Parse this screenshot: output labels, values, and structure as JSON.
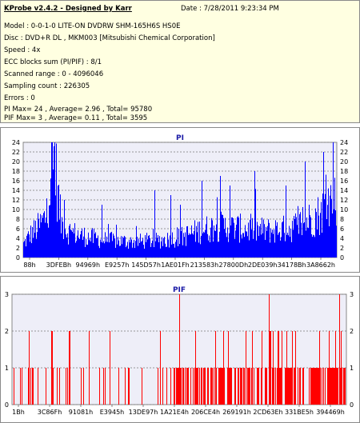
{
  "info": {
    "title": "KProbe v2.4.2 - Designed by Karr",
    "date": "Date : 7/28/2011 9:23:34 PM",
    "lines": [
      "Model : 0-0-1-0 LITE-ON DVDRW SHM-165H6S HS0E",
      "Disc : DVD+R DL , MKM003 [Mitsubishi Chemical Corporation]",
      "Speed : 4x",
      "ECC blocks sum (PI/PIF) : 8/1",
      "Scanned range : 0 - 4096046",
      "Sampling count : 226305",
      "Errors : 0",
      "PI Max= 24 , Average= 2.96 , Total= 95780",
      "PIF Max= 3 , Average= 0.11 , Total= 3595"
    ]
  },
  "chart_data": [
    {
      "type": "bar",
      "title": "PI",
      "color": "#0000ff",
      "ylim": [
        0,
        24
      ],
      "yticks": [
        0,
        2,
        4,
        6,
        8,
        10,
        12,
        14,
        16,
        18,
        20,
        22,
        24
      ],
      "xticks": [
        "88h",
        "3DFEBh",
        "94969h",
        "E9257h",
        "145D57h",
        "1AE01Fh",
        "213583h",
        "27800Dh",
        "2DE039h",
        "34178Bh",
        "3A8662h"
      ],
      "grid": true,
      "profile": [
        [
          0.0,
          3
        ],
        [
          0.02,
          5
        ],
        [
          0.05,
          7
        ],
        [
          0.07,
          9
        ],
        [
          0.08,
          14
        ],
        [
          0.09,
          20
        ],
        [
          0.1,
          22
        ],
        [
          0.11,
          14
        ],
        [
          0.12,
          8
        ],
        [
          0.14,
          6
        ],
        [
          0.18,
          5
        ],
        [
          0.25,
          4
        ],
        [
          0.35,
          3.5
        ],
        [
          0.45,
          4
        ],
        [
          0.5,
          4.5
        ],
        [
          0.56,
          6
        ],
        [
          0.62,
          7
        ],
        [
          0.7,
          6.5
        ],
        [
          0.78,
          6
        ],
        [
          0.85,
          6.5
        ],
        [
          0.9,
          8
        ],
        [
          0.95,
          10
        ],
        [
          0.98,
          13
        ],
        [
          1.0,
          14
        ]
      ],
      "spikes": [
        [
          0.09,
          24
        ],
        [
          0.1,
          24
        ],
        [
          0.13,
          12
        ],
        [
          0.25,
          11
        ],
        [
          0.42,
          14
        ],
        [
          0.47,
          13
        ],
        [
          0.5,
          11
        ],
        [
          0.57,
          16
        ],
        [
          0.63,
          17
        ],
        [
          0.66,
          15
        ],
        [
          0.74,
          18
        ],
        [
          0.84,
          15
        ],
        [
          0.9,
          20
        ],
        [
          0.96,
          22
        ],
        [
          0.99,
          24
        ]
      ]
    },
    {
      "type": "bar",
      "title": "PIF",
      "color": "#ff0000",
      "ylim": [
        0,
        3
      ],
      "yticks": [
        0,
        1,
        2,
        3
      ],
      "xticks": [
        "1Bh",
        "3C86Fh",
        "91081h",
        "E3945h",
        "13DE97h",
        "1A21E4h",
        "206CE4h",
        "269191h",
        "2CD63Eh",
        "331BE5h",
        "394469h"
      ],
      "grid": true,
      "density": [
        [
          0.0,
          0.25
        ],
        [
          0.1,
          0.2
        ],
        [
          0.2,
          0.12
        ],
        [
          0.3,
          0.12
        ],
        [
          0.4,
          0.15
        ],
        [
          0.46,
          0.3
        ],
        [
          0.5,
          0.6
        ],
        [
          0.6,
          0.55
        ],
        [
          0.7,
          0.6
        ],
        [
          0.8,
          0.65
        ],
        [
          0.9,
          0.7
        ],
        [
          1.0,
          0.75
        ]
      ],
      "spikes": [
        [
          0.5,
          3
        ],
        [
          0.77,
          3
        ],
        [
          0.98,
          3
        ],
        [
          0.05,
          2
        ],
        [
          0.12,
          2
        ],
        [
          0.17,
          2
        ],
        [
          0.23,
          2
        ],
        [
          0.55,
          2
        ],
        [
          0.61,
          2
        ],
        [
          0.7,
          2
        ],
        [
          0.84,
          2
        ],
        [
          0.92,
          2
        ],
        [
          0.95,
          2
        ],
        [
          0.97,
          2
        ]
      ]
    }
  ]
}
